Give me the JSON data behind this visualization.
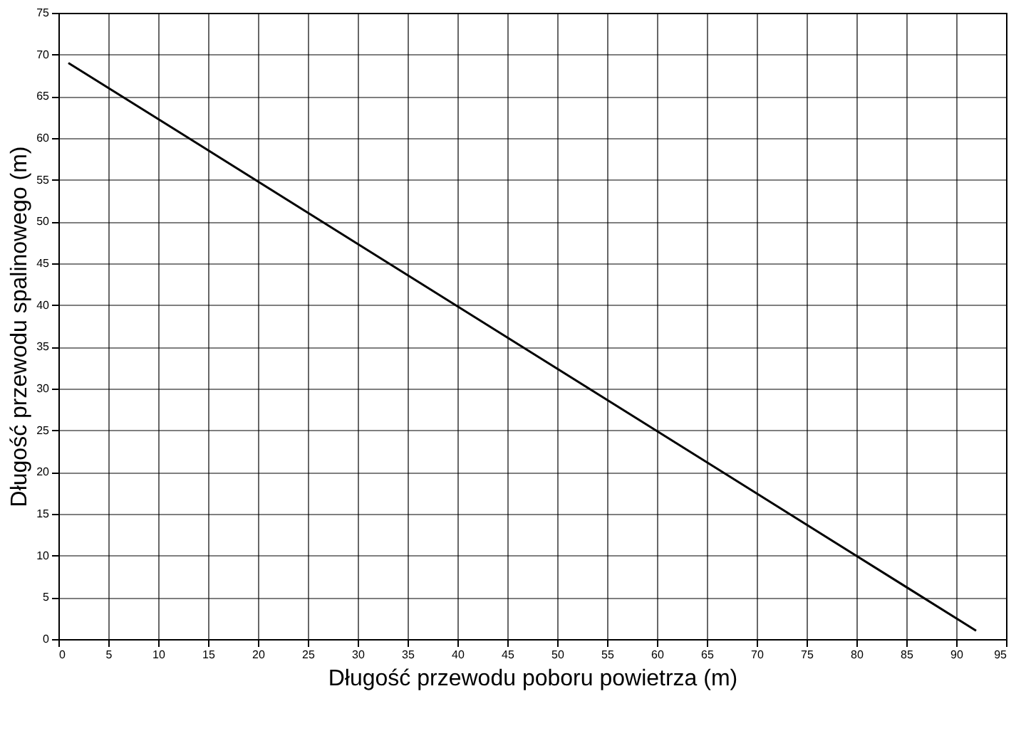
{
  "chart_data": {
    "type": "line",
    "xlabel": "Długość przewodu poboru powietrza (m)",
    "ylabel": "Długość przewodu spalinowego (m)",
    "series": [
      {
        "color": "#000000",
        "x": [
          1,
          92
        ],
        "values": [
          69,
          1
        ]
      }
    ],
    "xlim": [
      0,
      95
    ],
    "xticks": [
      0,
      5,
      10,
      15,
      20,
      25,
      30,
      35,
      40,
      45,
      50,
      55,
      60,
      65,
      70,
      75,
      80,
      85,
      90,
      95
    ],
    "ylim": [
      0,
      75
    ],
    "yticks": [
      0,
      5,
      10,
      15,
      20,
      25,
      30,
      35,
      40,
      45,
      50,
      55,
      60,
      65,
      70,
      75
    ],
    "grid": true,
    "marker": "none",
    "line_style": "solid"
  }
}
